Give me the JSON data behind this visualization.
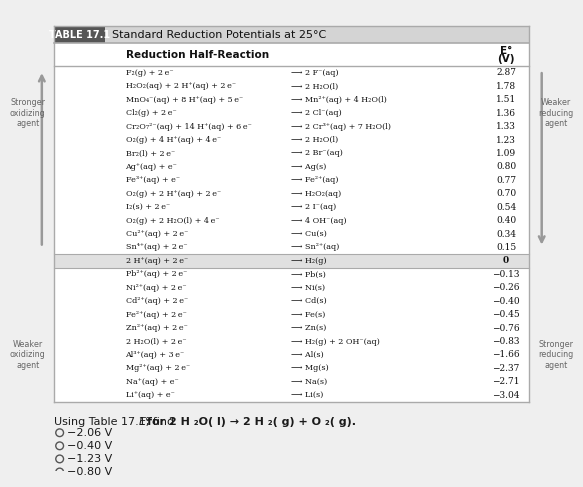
{
  "title_box": "TABLE 17.1",
  "title_text": "Standard Reduction Potentials at 25°C",
  "col_header_reaction": "Reduction Half-Reaction",
  "col_header_e": "E°",
  "col_header_v": "(V)",
  "rows": [
    [
      "F₂(g) + 2 e⁻",
      "⟶ 2 F⁻(aq)",
      "2.87"
    ],
    [
      "H₂O₂(aq) + 2 H⁺(aq) + 2 e⁻",
      "⟶ 2 H₂O(l)",
      "1.78"
    ],
    [
      "MnO₄⁻(aq) + 8 H⁺(aq) + 5 e⁻",
      "⟶ Mn²⁺(aq) + 4 H₂O(l)",
      "1.51"
    ],
    [
      "Cl₂(g) + 2 e⁻",
      "⟶ 2 Cl⁻(aq)",
      "1.36"
    ],
    [
      "Cr₂O₇²⁻(aq) + 14 H⁺(aq) + 6 e⁻",
      "⟶ 2 Cr³⁺(aq) + 7 H₂O(l)",
      "1.33"
    ],
    [
      "O₂(g) + 4 H⁺(aq) + 4 e⁻",
      "⟶ 2 H₂O(l)",
      "1.23"
    ],
    [
      "Br₂(l) + 2 e⁻",
      "⟶ 2 Br⁻(aq)",
      "1.09"
    ],
    [
      "Ag⁺(aq) + e⁻",
      "⟶ Ag(s)",
      "0.80"
    ],
    [
      "Fe³⁺(aq) + e⁻",
      "⟶ Fe²⁺(aq)",
      "0.77"
    ],
    [
      "O₂(g) + 2 H⁺(aq) + 2 e⁻",
      "⟶ H₂O₂(aq)",
      "0.70"
    ],
    [
      "I₂(s) + 2 e⁻",
      "⟶ 2 I⁻(aq)",
      "0.54"
    ],
    [
      "O₂(g) + 2 H₂O(l) + 4 e⁻",
      "⟶ 4 OH⁻(aq)",
      "0.40"
    ],
    [
      "Cu²⁺(aq) + 2 e⁻",
      "⟶ Cu(s)",
      "0.34"
    ],
    [
      "Sn⁴⁺(aq) + 2 e⁻",
      "⟶ Sn²⁺(aq)",
      "0.15"
    ],
    [
      "2 H⁺(aq) + 2 e⁻",
      "⟶ H₂(g)",
      "0"
    ],
    [
      "Pb²⁺(aq) + 2 e⁻",
      "⟶ Pb(s)",
      "−0.13"
    ],
    [
      "Ni²⁺(aq) + 2 e⁻",
      "⟶ Ni(s)",
      "−0.26"
    ],
    [
      "Cd²⁺(aq) + 2 e⁻",
      "⟶ Cd(s)",
      "−0.40"
    ],
    [
      "Fe²⁺(aq) + 2 e⁻",
      "⟶ Fe(s)",
      "−0.45"
    ],
    [
      "Zn²⁺(aq) + 2 e⁻",
      "⟶ Zn(s)",
      "−0.76"
    ],
    [
      "2 H₂O(l) + 2 e⁻",
      "⟶ H₂(g) + 2 OH⁻(aq)",
      "−0.83"
    ],
    [
      "Al³⁺(aq) + 3 e⁻",
      "⟶ Al(s)",
      "−1.66"
    ],
    [
      "Mg²⁺(aq) + 2 e⁻",
      "⟶ Mg(s)",
      "−2.37"
    ],
    [
      "Na⁺(aq) + e⁻",
      "⟶ Na(s)",
      "−2.71"
    ],
    [
      "Li⁺(aq) + e⁻",
      "⟶ Li(s)",
      "−3.04"
    ]
  ],
  "zero_row_index": 14,
  "stronger_ox_label": "Stronger\noxidizing\nagent",
  "weaker_ox_label": "Weaker\noxidizing\nagent",
  "weaker_red_label": "Weaker\nreducing\nagent",
  "stronger_red_label": "Stronger\nreducing\nagent",
  "choices": [
    "−2.06 V",
    "−0.40 V",
    "−1.23 V",
    "−0.80 V"
  ],
  "bg_color": "#efefef",
  "table_bg": "#ffffff",
  "header_bg": "#d4d4d4",
  "title_bg": "#555555",
  "title_fg": "#ffffff",
  "zero_row_bg": "#e0e0e0",
  "border_color": "#aaaaaa",
  "text_color": "#111111",
  "side_text_color": "#666666"
}
